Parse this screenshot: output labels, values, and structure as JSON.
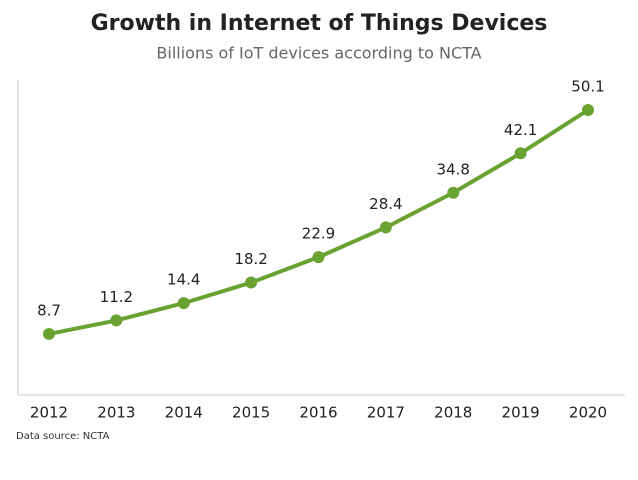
{
  "chart_data": {
    "type": "line",
    "title": "Growth in Internet of Things Devices",
    "subtitle": "Billions of IoT devices according to NCTA",
    "source": "Data source: NCTA",
    "categories": [
      "2012",
      "2013",
      "2014",
      "2015",
      "2016",
      "2017",
      "2018",
      "2019",
      "2020"
    ],
    "values": [
      8.7,
      11.2,
      14.4,
      18.2,
      22.9,
      28.4,
      34.8,
      42.1,
      50.1
    ],
    "color": "#6aa232",
    "ylim": [
      0,
      55
    ]
  }
}
